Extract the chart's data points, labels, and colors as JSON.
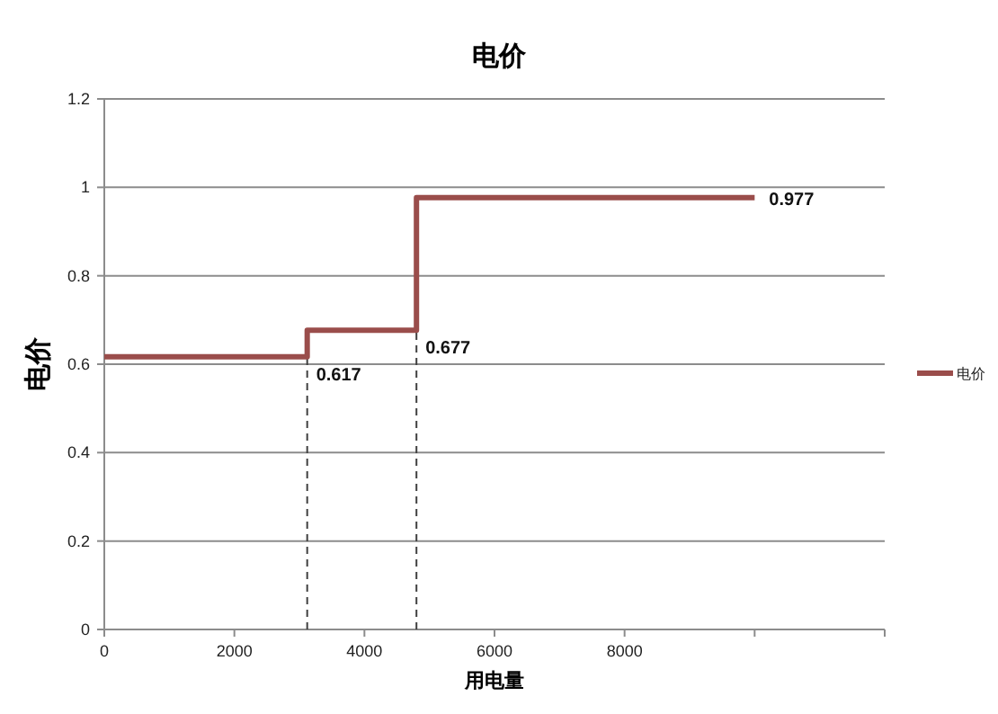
{
  "chart_data": {
    "type": "line",
    "title": "电价",
    "xlabel": "用电量",
    "ylabel": "电价",
    "xlim": [
      0,
      12000
    ],
    "xticks": [
      0,
      2000,
      4000,
      6000,
      8000,
      {
        "value": 10000,
        "label": null
      },
      {
        "value": 12000,
        "label": null
      }
    ],
    "ylim": [
      0,
      1.2
    ],
    "yticks": [
      0,
      0.2,
      0.4,
      0.6,
      0.8,
      1,
      1.2
    ],
    "grid": "y",
    "legend": "right",
    "line_style": "solid",
    "marker": "none",
    "series": [
      {
        "name": "电价",
        "color": "#9a4d4b",
        "x": [
          0,
          3120,
          3120,
          4800,
          4800,
          10000
        ],
        "values": [
          0.617,
          0.617,
          0.677,
          0.677,
          0.977,
          0.977
        ],
        "value_labels": [
          null,
          "0.617",
          null,
          "0.677",
          null,
          "0.977"
        ]
      }
    ],
    "ref_lines": [
      {
        "axis": "x",
        "value": 3120,
        "color": "#404040",
        "line_style": "dashed"
      },
      {
        "axis": "x",
        "value": 4800,
        "color": "#404040",
        "line_style": "dashed"
      }
    ]
  }
}
